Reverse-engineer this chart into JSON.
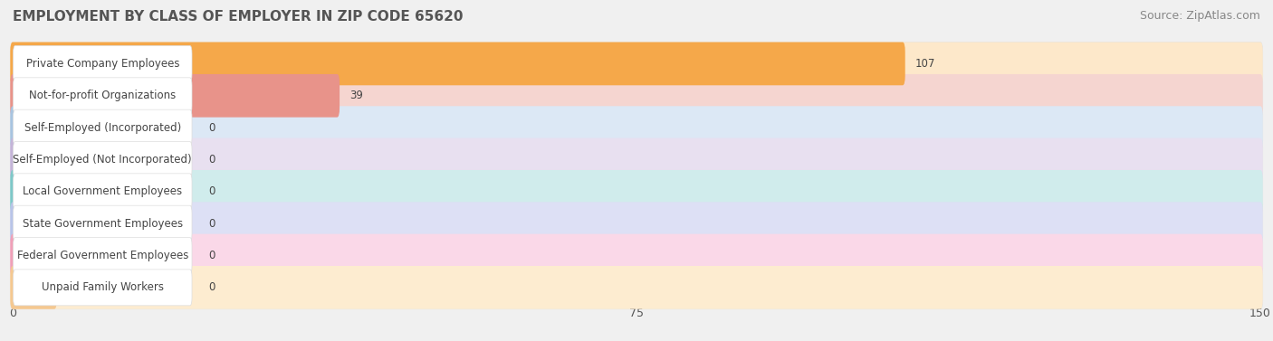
{
  "title": "EMPLOYMENT BY CLASS OF EMPLOYER IN ZIP CODE 65620",
  "source": "Source: ZipAtlas.com",
  "categories": [
    "Private Company Employees",
    "Not-for-profit Organizations",
    "Self-Employed (Incorporated)",
    "Self-Employed (Not Incorporated)",
    "Local Government Employees",
    "State Government Employees",
    "Federal Government Employees",
    "Unpaid Family Workers"
  ],
  "values": [
    107,
    39,
    0,
    0,
    0,
    0,
    0,
    0
  ],
  "bar_colors": [
    "#F5A84A",
    "#E8938A",
    "#A8C4E0",
    "#C4B4D8",
    "#7EC8C8",
    "#B8C4E8",
    "#F0A0B8",
    "#F5C890"
  ],
  "bar_bg_colors": [
    "#FDE8CA",
    "#F5D5D0",
    "#DCE8F5",
    "#E8E0F0",
    "#D0ECEC",
    "#DDE0F5",
    "#FAD8E8",
    "#FDECD0"
  ],
  "xlim": [
    0,
    150
  ],
  "xticks": [
    0,
    75,
    150
  ],
  "background_color": "#f0f0f0",
  "row_bg_color": "#ffffff",
  "title_fontsize": 11,
  "source_fontsize": 9,
  "label_fontsize": 8.5,
  "value_fontsize": 8.5,
  "zero_bar_width": 40
}
